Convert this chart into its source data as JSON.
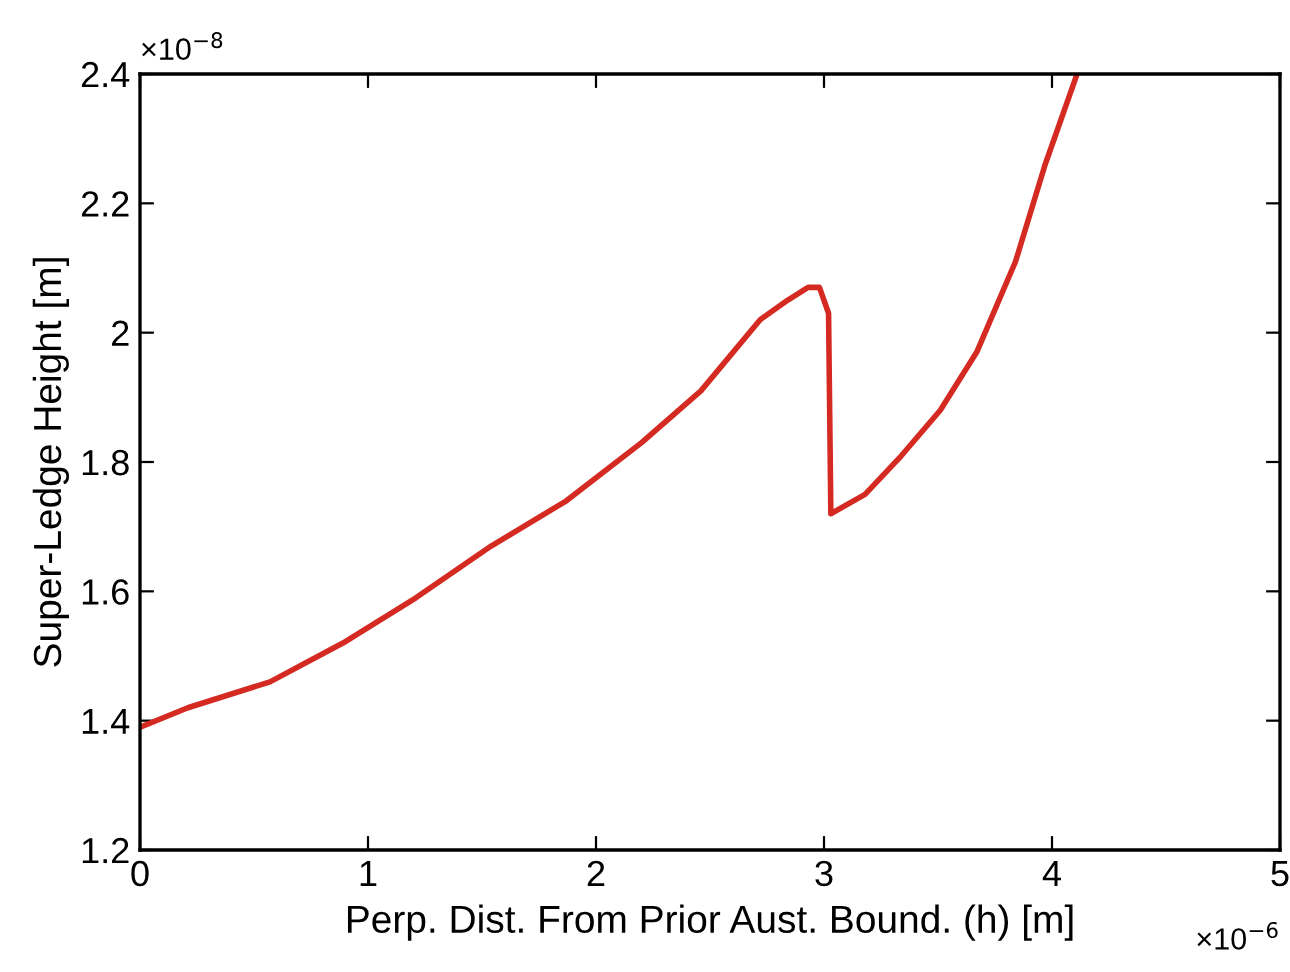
{
  "chart_data": {
    "type": "line",
    "xlabel": "Perp. Dist. From Prior Aust. Bound. (h) [m]",
    "ylabel": "Super-Ledge Height [m]",
    "series": [
      {
        "color": "#d42a22",
        "x": [
          0,
          0.21,
          0.57,
          0.89,
          1.21,
          1.54,
          1.87,
          2.2,
          2.46,
          2.72,
          2.84,
          2.93,
          2.98,
          3.02,
          3.03,
          3.18,
          3.34,
          3.51,
          3.67,
          3.84,
          3.97,
          4.11
        ],
        "values": [
          1.39,
          1.42,
          1.46,
          1.52,
          1.59,
          1.67,
          1.74,
          1.83,
          1.91,
          2.02,
          2.05,
          2.07,
          2.07,
          2.03,
          1.72,
          1.75,
          1.81,
          1.88,
          1.97,
          2.11,
          2.26,
          2.4
        ]
      }
    ],
    "xlim": [
      0,
      5
    ],
    "ylim": [
      1.2,
      2.4
    ],
    "xticks": [
      0,
      1,
      2,
      3,
      4,
      5
    ],
    "yticks": [
      1.2,
      1.4,
      1.6,
      1.8,
      2,
      2.2,
      2.4
    ],
    "annotations": [
      "×10$^{−8}$",
      "×10$^{−6}$"
    ],
    "grid": false,
    "legend": false,
    "marker": "none",
    "line_style": "solid"
  }
}
